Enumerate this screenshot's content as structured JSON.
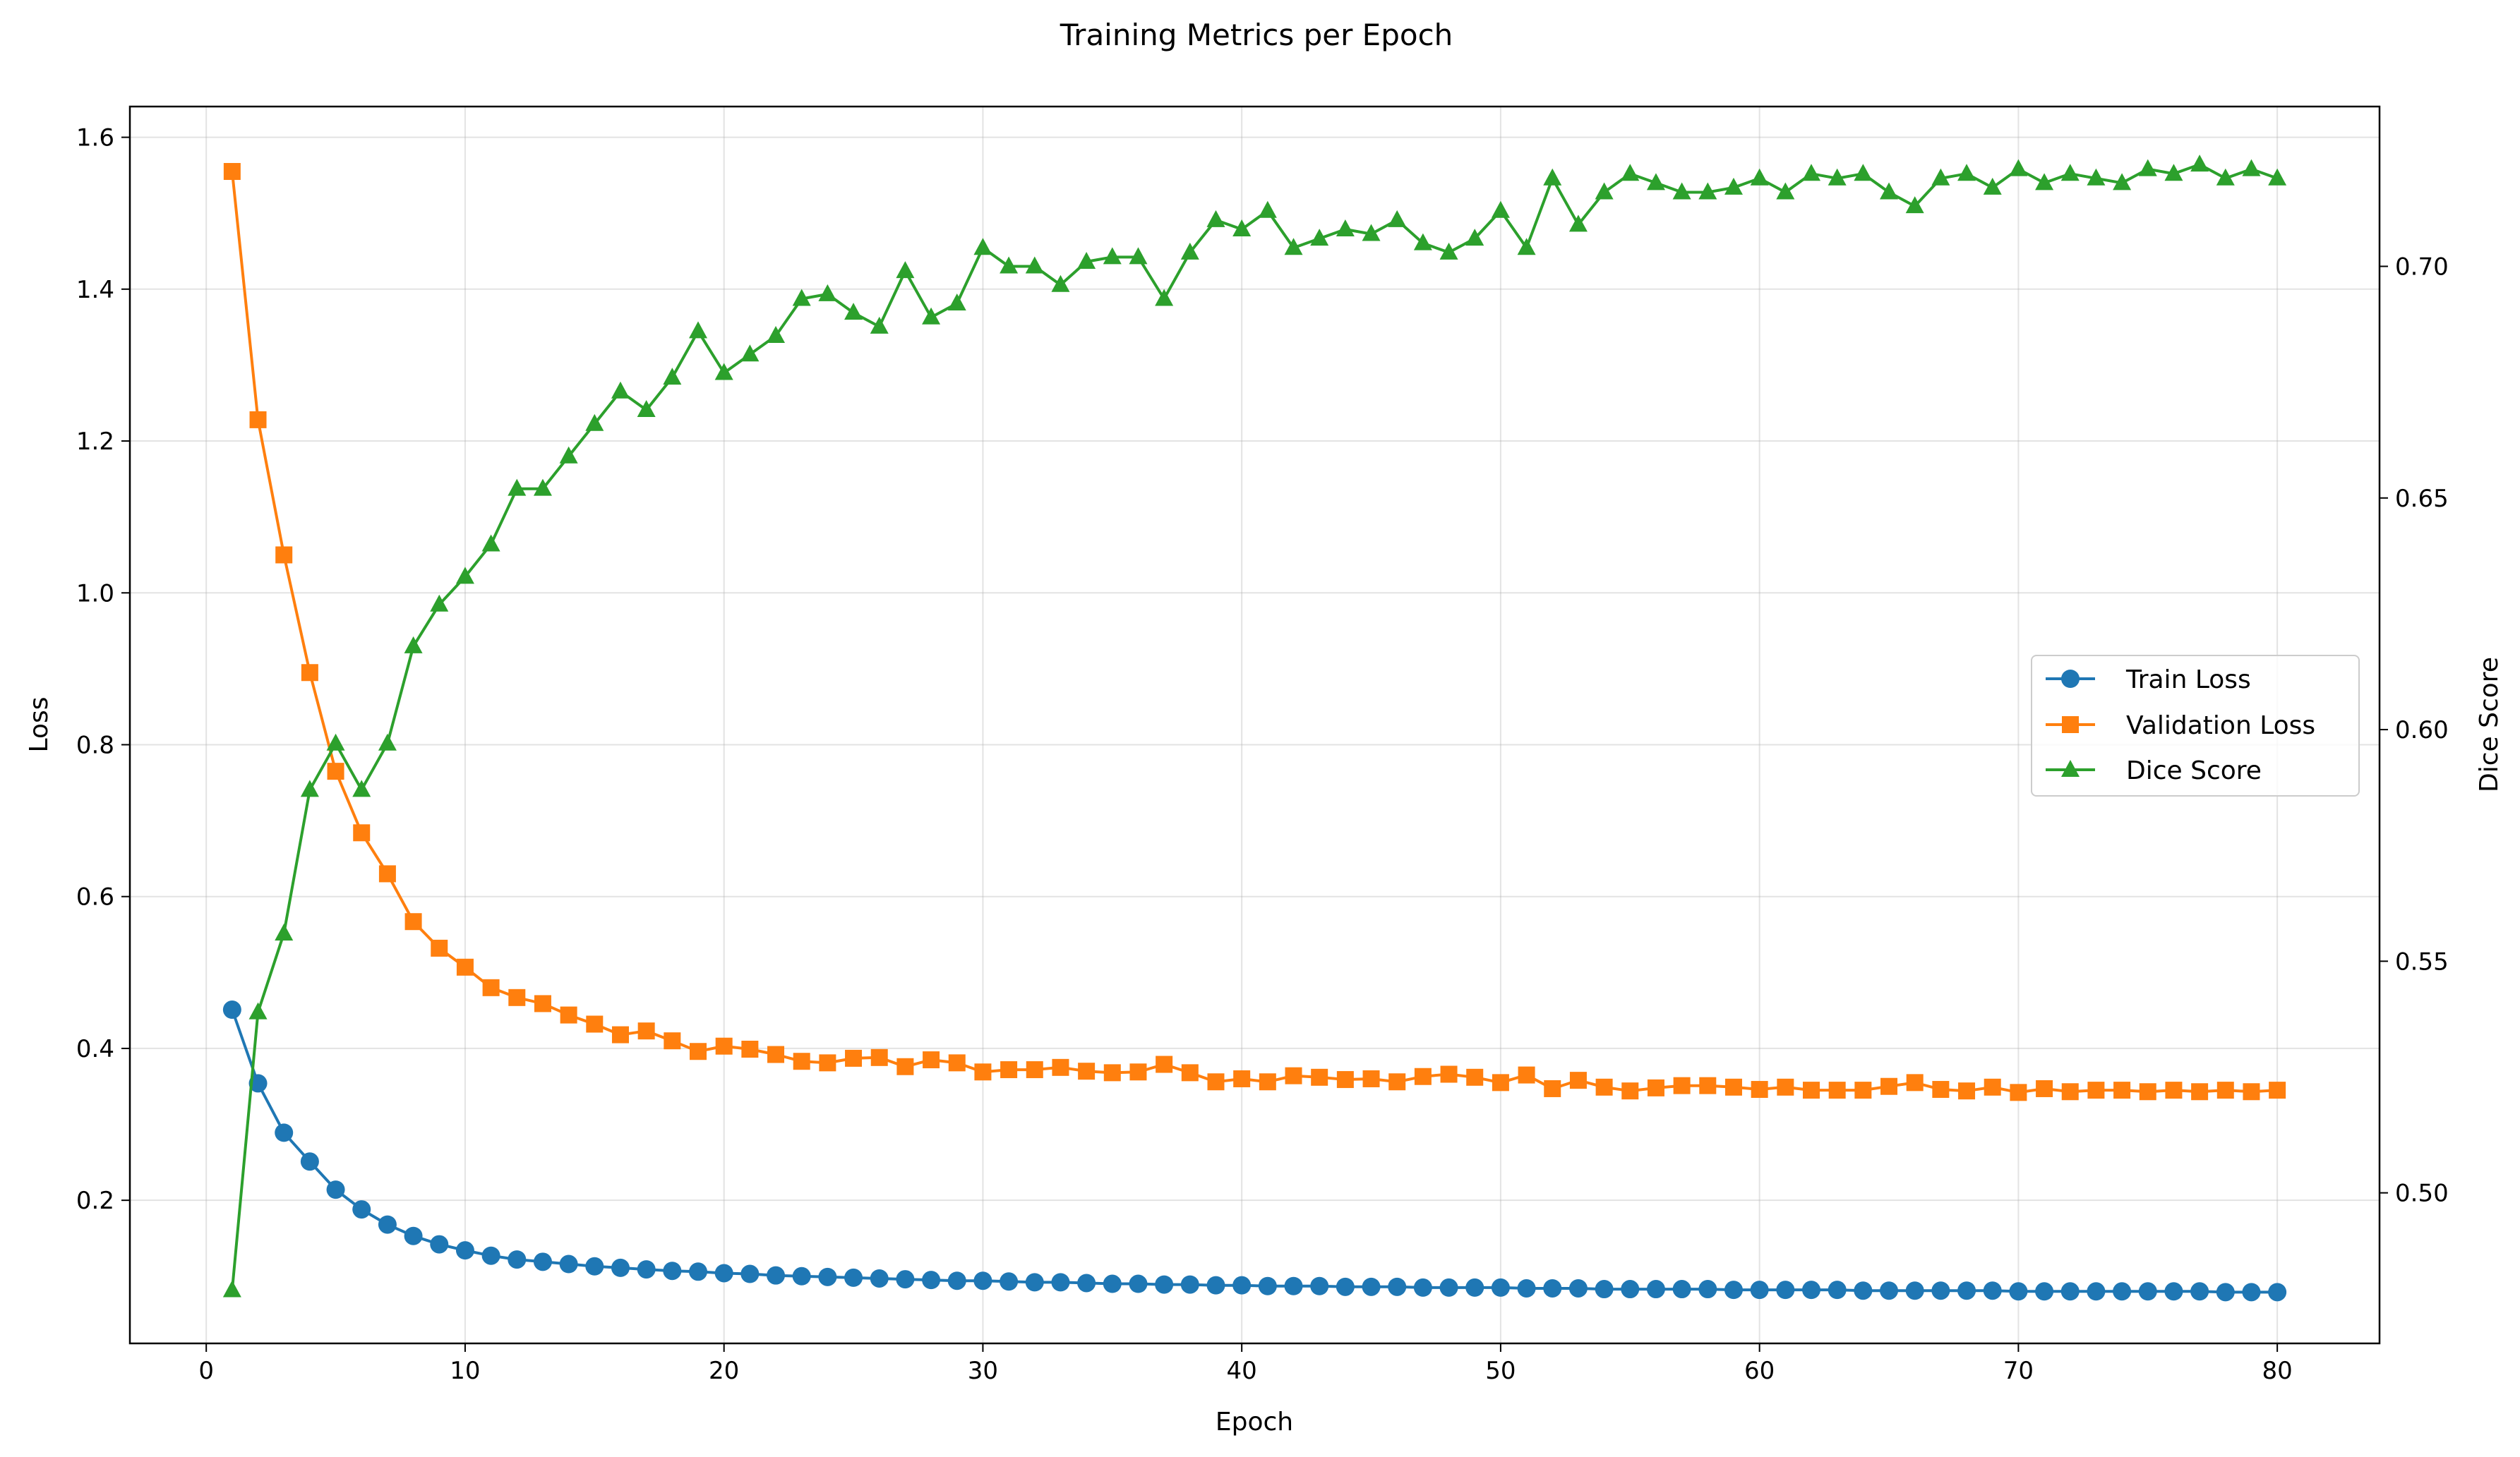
{
  "chart_data": {
    "type": "line",
    "title": "Training Metrics per Epoch",
    "xlabel": "Epoch",
    "ylabel": "Loss",
    "y2label": "Dice Score",
    "xlim": [
      -2.95,
      83.95
    ],
    "ylim": [
      0.0115,
      1.6405
    ],
    "y2lim": [
      0.4675,
      0.7345
    ],
    "xticks": [
      0,
      10,
      20,
      30,
      40,
      50,
      60,
      70,
      80
    ],
    "yticks": [
      0.2,
      0.4,
      0.6,
      0.8,
      1.0,
      1.2,
      1.4,
      1.6
    ],
    "y2ticks": [
      0.5,
      0.55,
      0.6,
      0.65,
      0.7
    ],
    "xtick_labels": [
      "0",
      "10",
      "20",
      "30",
      "40",
      "50",
      "60",
      "70",
      "80"
    ],
    "ytick_labels": [
      "0.2",
      "0.4",
      "0.6",
      "0.8",
      "1.0",
      "1.2",
      "1.4",
      "1.6"
    ],
    "y2tick_labels": [
      "0.50",
      "0.55",
      "0.60",
      "0.65",
      "0.70"
    ],
    "grid": true,
    "legend_position": "center-right",
    "x": [
      1,
      2,
      3,
      4,
      5,
      6,
      7,
      8,
      9,
      10,
      11,
      12,
      13,
      14,
      15,
      16,
      17,
      18,
      19,
      20,
      21,
      22,
      23,
      24,
      25,
      26,
      27,
      28,
      29,
      30,
      31,
      32,
      33,
      34,
      35,
      36,
      37,
      38,
      39,
      40,
      41,
      42,
      43,
      44,
      45,
      46,
      47,
      48,
      49,
      50,
      51,
      52,
      53,
      54,
      55,
      56,
      57,
      58,
      59,
      60,
      61,
      62,
      63,
      64,
      65,
      66,
      67,
      68,
      69,
      70,
      71,
      72,
      73,
      74,
      75,
      76,
      77,
      78,
      79,
      80
    ],
    "series": [
      {
        "name": "Train Loss",
        "axis": "left",
        "color": "#1f77b4",
        "marker": "circle",
        "values": [
          0.451,
          0.354,
          0.289,
          0.251,
          0.214,
          0.188,
          0.168,
          0.153,
          0.142,
          0.134,
          0.127,
          0.122,
          0.119,
          0.116,
          0.113,
          0.111,
          0.109,
          0.107,
          0.106,
          0.104,
          0.103,
          0.101,
          0.1,
          0.099,
          0.098,
          0.097,
          0.096,
          0.095,
          0.094,
          0.094,
          0.093,
          0.092,
          0.092,
          0.091,
          0.09,
          0.09,
          0.089,
          0.089,
          0.088,
          0.088,
          0.087,
          0.087,
          0.087,
          0.086,
          0.086,
          0.086,
          0.085,
          0.085,
          0.085,
          0.085,
          0.084,
          0.084,
          0.084,
          0.083,
          0.083,
          0.083,
          0.083,
          0.083,
          0.082,
          0.082,
          0.082,
          0.082,
          0.082,
          0.081,
          0.081,
          0.081,
          0.081,
          0.081,
          0.081,
          0.08,
          0.08,
          0.08,
          0.08,
          0.08,
          0.08,
          0.08,
          0.08,
          0.079,
          0.079,
          0.079
        ]
      },
      {
        "name": "Validation Loss",
        "axis": "left",
        "color": "#ff7f0e",
        "marker": "square",
        "values": [
          1.555,
          1.228,
          1.05,
          0.895,
          0.765,
          0.684,
          0.63,
          0.567,
          0.532,
          0.507,
          0.48,
          0.467,
          0.459,
          0.444,
          0.432,
          0.418,
          0.423,
          0.41,
          0.396,
          0.403,
          0.399,
          0.392,
          0.383,
          0.381,
          0.387,
          0.388,
          0.376,
          0.385,
          0.381,
          0.369,
          0.372,
          0.372,
          0.375,
          0.37,
          0.368,
          0.369,
          0.379,
          0.368,
          0.356,
          0.36,
          0.356,
          0.364,
          0.362,
          0.359,
          0.36,
          0.356,
          0.363,
          0.366,
          0.362,
          0.355,
          0.365,
          0.347,
          0.358,
          0.349,
          0.344,
          0.348,
          0.351,
          0.351,
          0.349,
          0.346,
          0.349,
          0.345,
          0.345,
          0.345,
          0.35,
          0.355,
          0.346,
          0.344,
          0.349,
          0.342,
          0.347,
          0.343,
          0.345,
          0.345,
          0.343,
          0.345,
          0.343,
          0.345,
          0.343,
          0.345
        ]
      },
      {
        "name": "Dice Score",
        "axis": "right",
        "color": "#2ca02c",
        "marker": "triangle",
        "values": [
          0.479,
          0.539,
          0.556,
          0.587,
          0.597,
          0.587,
          0.597,
          0.618,
          0.627,
          0.633,
          0.64,
          0.652,
          0.652,
          0.659,
          0.666,
          0.673,
          0.669,
          0.676,
          0.686,
          0.677,
          0.681,
          0.685,
          0.693,
          0.694,
          0.69,
          0.687,
          0.699,
          0.689,
          0.692,
          0.704,
          0.7,
          0.7,
          0.696,
          0.701,
          0.702,
          0.702,
          0.693,
          0.703,
          0.71,
          0.708,
          0.712,
          0.704,
          0.706,
          0.708,
          0.707,
          0.71,
          0.705,
          0.703,
          0.706,
          0.712,
          0.704,
          0.719,
          0.709,
          0.716,
          0.72,
          0.718,
          0.716,
          0.716,
          0.717,
          0.719,
          0.716,
          0.72,
          0.719,
          0.72,
          0.716,
          0.713,
          0.719,
          0.72,
          0.717,
          0.721,
          0.718,
          0.72,
          0.719,
          0.718,
          0.721,
          0.72,
          0.722,
          0.719,
          0.721,
          0.719
        ]
      }
    ]
  }
}
